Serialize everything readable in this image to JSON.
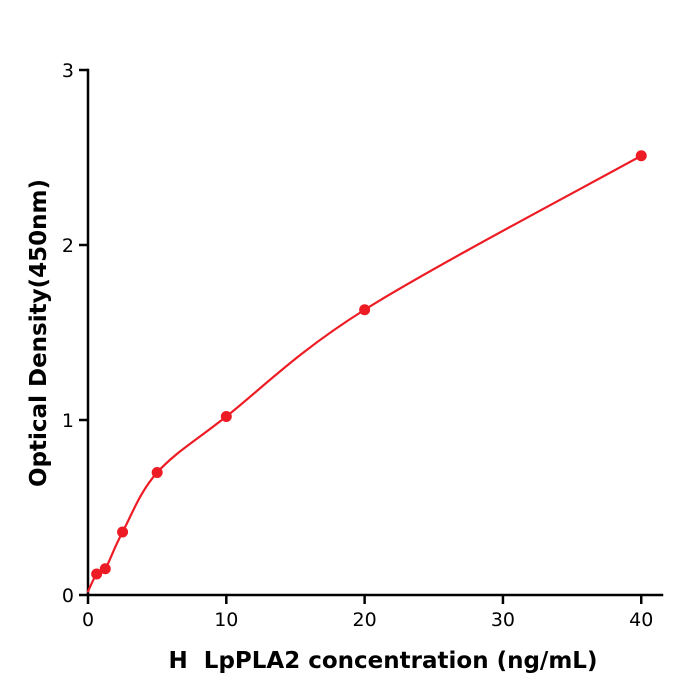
{
  "page": {
    "background": "#ffffff"
  },
  "chart_data": {
    "type": "line",
    "title": "",
    "xlabel": "H  LpPLA2 concentration (ng/mL)",
    "ylabel": "Optical Density(450nm)",
    "x": [
      0.625,
      1.25,
      2.5,
      5,
      10,
      20,
      40
    ],
    "y": [
      0.12,
      0.15,
      0.36,
      0.7,
      1.02,
      1.63,
      2.51
    ],
    "xlim": [
      0,
      41.5
    ],
    "ylim": [
      0,
      3
    ],
    "x_ticks": [
      0,
      10,
      20,
      30,
      40
    ],
    "y_ticks": [
      0,
      1,
      2,
      3
    ],
    "grid": false,
    "legend": null,
    "line_color": "#ed1c24",
    "marker_color": "#ed1c24",
    "marker": "circle",
    "axis_color": "#000000",
    "fit_extends_to_origin": true
  }
}
